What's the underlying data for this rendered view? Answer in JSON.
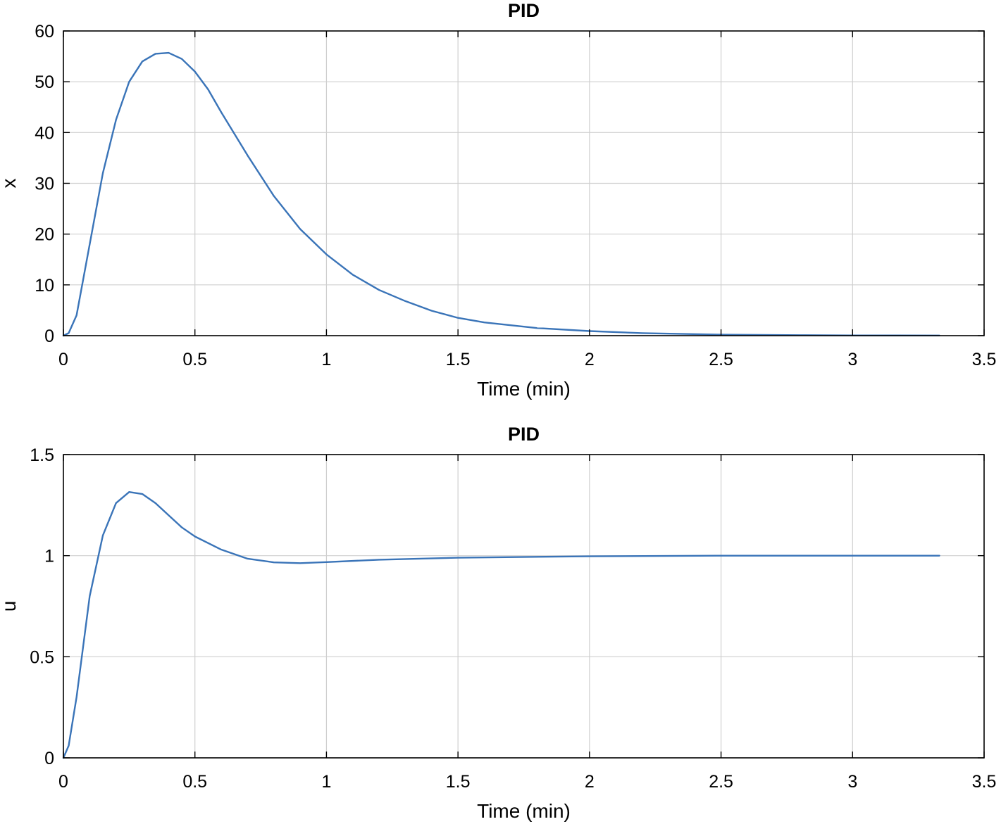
{
  "chart_data": [
    {
      "type": "line",
      "title": "PID",
      "xlabel": "Time (min)",
      "ylabel": "x",
      "xlim": [
        0,
        3.5
      ],
      "ylim": [
        0,
        60
      ],
      "xticks": [
        0,
        0.5,
        1,
        1.5,
        2,
        2.5,
        3,
        3.5
      ],
      "yticks": [
        0,
        10,
        20,
        30,
        40,
        50,
        60
      ],
      "xtick_labels": [
        "0",
        "0.5",
        "1",
        "1.5",
        "2",
        "2.5",
        "3",
        "3.5"
      ],
      "ytick_labels": [
        "0",
        "10",
        "20",
        "30",
        "40",
        "50",
        "60"
      ],
      "grid": true,
      "series": [
        {
          "name": "x",
          "color": "#3a74b8",
          "x": [
            0,
            0.02,
            0.05,
            0.1,
            0.15,
            0.2,
            0.25,
            0.3,
            0.35,
            0.4,
            0.45,
            0.5,
            0.55,
            0.6,
            0.7,
            0.8,
            0.9,
            1.0,
            1.1,
            1.2,
            1.3,
            1.4,
            1.5,
            1.6,
            1.8,
            2.0,
            2.2,
            2.5,
            2.8,
            3.0,
            3.33
          ],
          "y": [
            0,
            0.5,
            4,
            18,
            32,
            42.5,
            50,
            54,
            55.5,
            55.7,
            54.5,
            52,
            48.5,
            44,
            35.5,
            27.5,
            21,
            16,
            12,
            9,
            6.8,
            4.9,
            3.5,
            2.6,
            1.5,
            0.9,
            0.5,
            0.2,
            0.1,
            0.05,
            0.02
          ]
        }
      ]
    },
    {
      "type": "line",
      "title": "PID",
      "xlabel": "Time (min)",
      "ylabel": "u",
      "xlim": [
        0,
        3.5
      ],
      "ylim": [
        0,
        1.5
      ],
      "xticks": [
        0,
        0.5,
        1,
        1.5,
        2,
        2.5,
        3,
        3.5
      ],
      "yticks": [
        0,
        0.5,
        1,
        1.5
      ],
      "xtick_labels": [
        "0",
        "0.5",
        "1",
        "1.5",
        "2",
        "2.5",
        "3",
        "3.5"
      ],
      "ytick_labels": [
        "0",
        "0.5",
        "1",
        "1.5"
      ],
      "grid": true,
      "series": [
        {
          "name": "u",
          "color": "#3a74b8",
          "x": [
            0,
            0.02,
            0.05,
            0.08,
            0.1,
            0.15,
            0.2,
            0.25,
            0.3,
            0.35,
            0.4,
            0.45,
            0.5,
            0.6,
            0.7,
            0.8,
            0.9,
            1.0,
            1.2,
            1.5,
            2.0,
            2.5,
            3.0,
            3.33
          ],
          "y": [
            0,
            0.06,
            0.3,
            0.6,
            0.8,
            1.1,
            1.26,
            1.315,
            1.305,
            1.26,
            1.2,
            1.14,
            1.095,
            1.03,
            0.985,
            0.967,
            0.963,
            0.968,
            0.98,
            0.99,
            0.997,
            1.0,
            1.0,
            1.0
          ]
        }
      ]
    }
  ]
}
